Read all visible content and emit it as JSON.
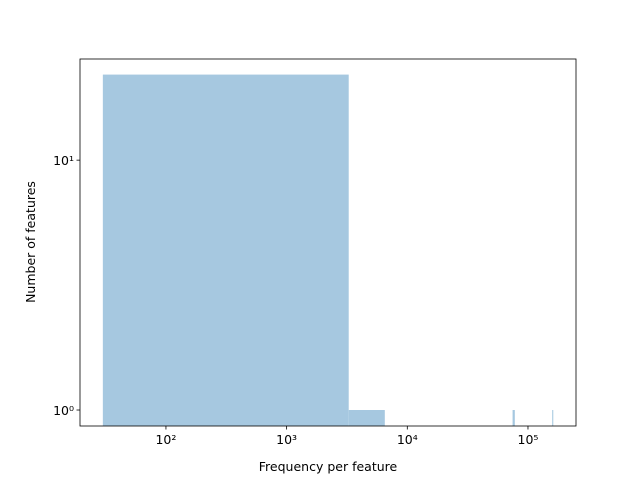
{
  "chart_data": {
    "type": "histogram",
    "xlabel": "Frequency per feature",
    "ylabel": "Number of features",
    "bins": [
      30,
      3270,
      6510,
      9750,
      12990,
      16230,
      19470,
      22710,
      25950,
      29190,
      32430,
      35670,
      38910,
      42150,
      45390,
      48630,
      51870,
      55110,
      58350,
      61590,
      64830,
      68070,
      71310,
      74550,
      77790,
      81030,
      84270,
      87510,
      90750,
      93990,
      97230,
      100470,
      103710,
      106950,
      110190,
      113430,
      116670,
      119910,
      123150,
      126390,
      129630,
      132870,
      136110,
      139350,
      142590,
      145830,
      149070,
      152310,
      155550,
      158790,
      162030
    ],
    "values": [
      22,
      1,
      0,
      0,
      0,
      0,
      0,
      0,
      0,
      0,
      0,
      0,
      0,
      0,
      0,
      0,
      0,
      0,
      0,
      0,
      0,
      0,
      0,
      1,
      0,
      0,
      0,
      0,
      0,
      0,
      0,
      0,
      0,
      0,
      0,
      0,
      0,
      0,
      0,
      0,
      0,
      0,
      0,
      0,
      0,
      0,
      0,
      0,
      0,
      1
    ],
    "color": "#a6c8e0",
    "xscale": "log",
    "yscale": "log",
    "xlim": [
      19.4,
      250000
    ],
    "ylim": [
      0.863,
      25.4
    ],
    "xticks": [
      {
        "value": 100,
        "label": "10²"
      },
      {
        "value": 1000,
        "label": "10³"
      },
      {
        "value": 10000,
        "label": "10⁴"
      },
      {
        "value": 100000,
        "label": "10⁵"
      }
    ],
    "yticks": [
      {
        "value": 1,
        "label": "10⁰"
      },
      {
        "value": 10,
        "label": "10¹"
      }
    ]
  }
}
